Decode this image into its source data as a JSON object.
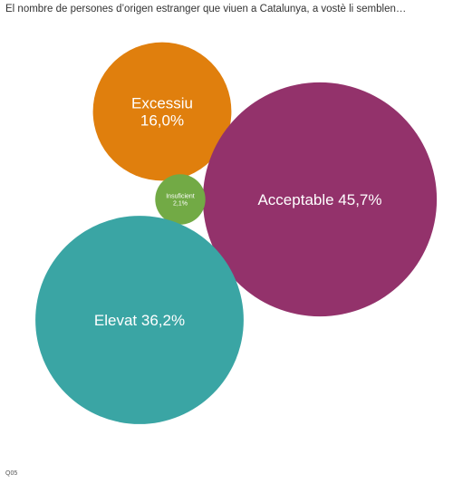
{
  "chart_data": {
    "type": "bubble",
    "title": "El nombre de persones d’origen estranger que viuen a Catalunya, a vostè li semblen…",
    "categories": [
      "Excessiu",
      "Acceptable",
      "Insuficient",
      "Elevat"
    ],
    "values": [
      16.0,
      45.7,
      2.1,
      36.2
    ],
    "value_labels": [
      "16,0%",
      "45,7%",
      "2,1%",
      "36,2%"
    ],
    "unit": "%",
    "colors": [
      "#e07f0d",
      "#93326b",
      "#72aa45",
      "#3aa5a4"
    ],
    "grid": false,
    "legend": "none"
  },
  "footnote": "Q05"
}
